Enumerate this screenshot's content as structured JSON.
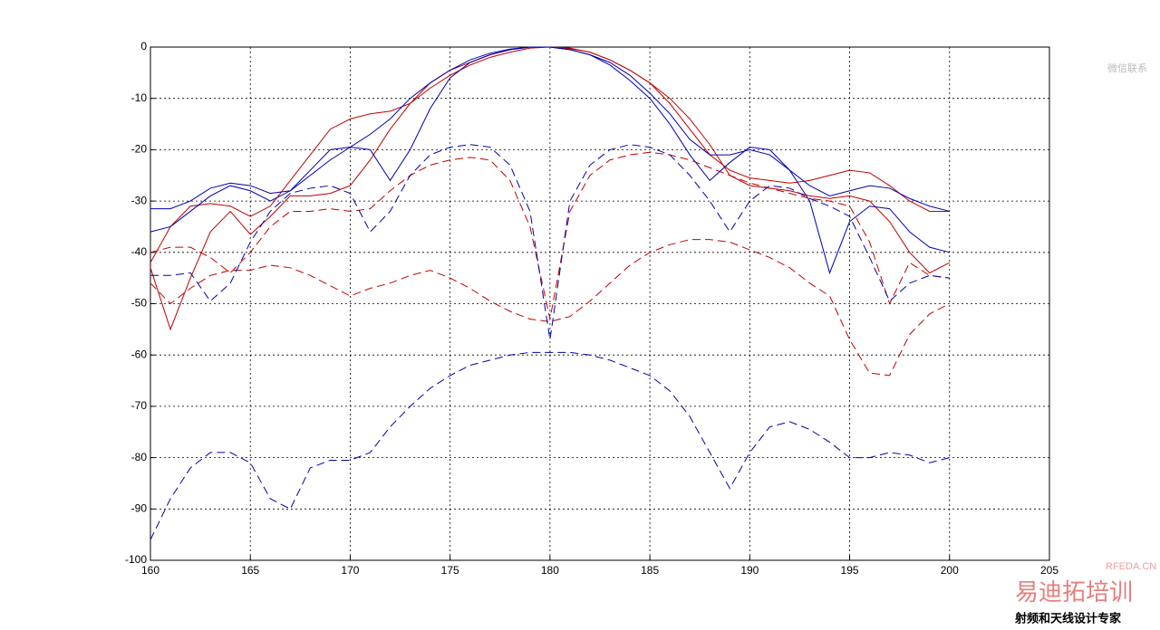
{
  "chart_data": {
    "type": "line",
    "x": [
      160,
      161,
      162,
      163,
      164,
      165,
      166,
      167,
      168,
      169,
      170,
      171,
      172,
      173,
      174,
      175,
      176,
      177,
      178,
      179,
      180,
      181,
      182,
      183,
      184,
      185,
      186,
      187,
      188,
      189,
      190,
      191,
      192,
      193,
      194,
      195,
      196,
      197,
      198,
      199,
      200
    ],
    "xlim": [
      160,
      205
    ],
    "xticks": [
      160,
      165,
      170,
      175,
      180,
      185,
      190,
      195,
      200,
      205
    ],
    "ylim": [
      -100,
      0
    ],
    "yticks": [
      -100,
      -90,
      -80,
      -70,
      -60,
      -50,
      -40,
      -30,
      -20,
      -10,
      0
    ],
    "grid": true,
    "series": [
      {
        "color": "#c00000",
        "dash": false,
        "values": [
          -42,
          -35,
          -31,
          -30.5,
          -31,
          -33,
          -31,
          -26,
          -21,
          -16,
          -14,
          -13,
          -12.5,
          -11,
          -8,
          -5.5,
          -3.5,
          -2,
          -1,
          -0.2,
          0,
          -0.2,
          -1,
          -2.5,
          -4.5,
          -7,
          -11,
          -16,
          -21,
          -24,
          -25.5,
          -26,
          -26.5,
          -26,
          -25,
          -24,
          -24.5,
          -27,
          -30,
          -32,
          -32
        ]
      },
      {
        "color": "#c00000",
        "dash": false,
        "values": [
          -43,
          -55,
          -45,
          -36,
          -32,
          -36.5,
          -33,
          -29,
          -29,
          -28.5,
          -27,
          -22,
          -16,
          -11,
          -7,
          -4.5,
          -3,
          -1.5,
          -0.5,
          0,
          0,
          -0.3,
          -1,
          -2.5,
          -4.5,
          -7,
          -10,
          -14,
          -19,
          -25,
          -27,
          -27.5,
          -28,
          -29,
          -29.5,
          -29,
          -30,
          -34,
          -40,
          -44,
          -42
        ]
      },
      {
        "color": "#0000b0",
        "dash": false,
        "values": [
          -31.5,
          -31.5,
          -30,
          -27.5,
          -26.5,
          -27,
          -28.5,
          -28,
          -25,
          -22,
          -19.5,
          -17,
          -14,
          -10,
          -7,
          -4.5,
          -2.5,
          -1.2,
          -0.4,
          0,
          0,
          -0.5,
          -1.5,
          -3,
          -5.5,
          -9,
          -13,
          -18,
          -21,
          -21,
          -20,
          -21,
          -24,
          -27,
          -29,
          -28,
          -27,
          -27.5,
          -29.5,
          -31,
          -32
        ]
      },
      {
        "color": "#0000b0",
        "dash": false,
        "values": [
          -36,
          -35,
          -32,
          -29,
          -27,
          -28,
          -30,
          -28,
          -24,
          -20,
          -19.5,
          -20,
          -26,
          -20,
          -12,
          -6,
          -3,
          -1.5,
          -0.5,
          0,
          0,
          -0.5,
          -1.5,
          -3.5,
          -6.5,
          -10,
          -15,
          -21,
          -26,
          -22.5,
          -19.5,
          -20,
          -24,
          -30,
          -44,
          -34,
          -31,
          -31.5,
          -36,
          -39,
          -40
        ]
      },
      {
        "color": "#c00000",
        "dash": true,
        "values": [
          -40,
          -39,
          -39,
          -41,
          -44,
          -40,
          -35,
          -32,
          -32,
          -31.5,
          -32,
          -31.5,
          -28,
          -25,
          -23,
          -22,
          -21.5,
          -22,
          -26,
          -35,
          -53,
          -32,
          -25,
          -22,
          -21,
          -20.5,
          -21,
          -22,
          -23.5,
          -25,
          -26.5,
          -27.5,
          -28.5,
          -29.5,
          -30,
          -31,
          -38,
          -50,
          -42,
          -44.5,
          -45
        ]
      },
      {
        "color": "#c00000",
        "dash": true,
        "values": [
          -46,
          -50,
          -47,
          -44.5,
          -43.5,
          -43.5,
          -42.5,
          -43,
          -44.5,
          -46.5,
          -48.5,
          -47,
          -46,
          -44.5,
          -43.5,
          -45,
          -47,
          -49.5,
          -51.5,
          -53,
          -53.5,
          -52.5,
          -49.5,
          -46,
          -42.5,
          -40,
          -38.5,
          -37.5,
          -37.5,
          -38,
          -39.5,
          -41,
          -43,
          -46,
          -48.5,
          -57,
          -63.5,
          -64,
          -56,
          -52,
          -50
        ]
      },
      {
        "color": "#0000b0",
        "dash": true,
        "values": [
          -44.5,
          -44.5,
          -44,
          -49.5,
          -46,
          -38,
          -32,
          -28.5,
          -27.5,
          -27,
          -28.5,
          -36,
          -32,
          -25,
          -21,
          -19.5,
          -19,
          -19.5,
          -23,
          -32,
          -57,
          -30,
          -23,
          -20,
          -19,
          -19.5,
          -21,
          -25,
          -30,
          -36,
          -30,
          -27,
          -27.5,
          -29.5,
          -31,
          -33,
          -41,
          -49.5,
          -46,
          -44.5,
          -45
        ]
      },
      {
        "color": "#0000b0",
        "dash": true,
        "values": [
          -96,
          -88,
          -82,
          -79,
          -79,
          -81,
          -88,
          -90,
          -82,
          -80.5,
          -80.5,
          -79,
          -74,
          -70,
          -66.5,
          -64,
          -62,
          -61,
          -60,
          -59.5,
          -59.5,
          -59.5,
          -60,
          -61,
          -62.5,
          -64,
          -67,
          -72,
          -79,
          -86,
          -79,
          -74,
          -73,
          -74.5,
          -77,
          -80,
          -80,
          -79,
          -79.5,
          -81,
          -80
        ]
      }
    ]
  },
  "watermarks": [
    "微信联系",
    "RFEDA.CN",
    "易迪拓培训",
    "射频和天线设计专家"
  ]
}
